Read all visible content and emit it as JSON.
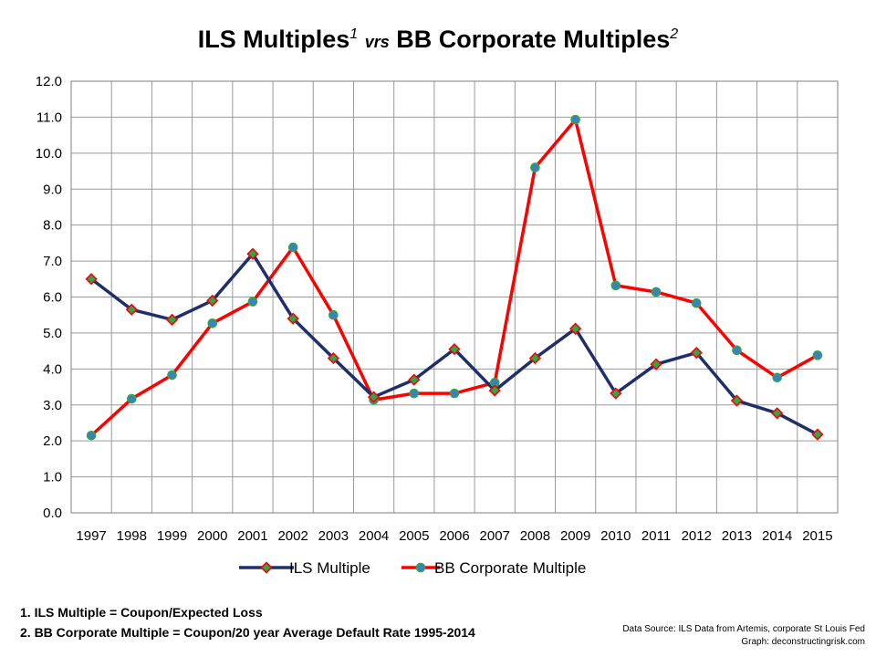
{
  "title": {
    "part1": "ILS Multiples",
    "sup1": "1",
    "vrs": "vrs",
    "part2": "BB Corporate Multiples",
    "sup2": "2"
  },
  "colors": {
    "ils_line": "#1f2f6b",
    "bb_line": "#ff0000",
    "ils_marker": "#2aa84a",
    "bb_marker": "#3f7fbf",
    "grid": "#9a9a9a"
  },
  "chart_data": {
    "type": "line",
    "title": "ILS Multiples vrs BB Corporate Multiples",
    "xlabel": "",
    "ylabel": "",
    "ylim": [
      0,
      12
    ],
    "yticks": [
      "0.0",
      "1.0",
      "2.0",
      "3.0",
      "4.0",
      "5.0",
      "6.0",
      "7.0",
      "8.0",
      "9.0",
      "10.0",
      "11.0",
      "12.0"
    ],
    "categories": [
      "1997",
      "1998",
      "1999",
      "2000",
      "2001",
      "2002",
      "2003",
      "2004",
      "2005",
      "2006",
      "2007",
      "2008",
      "2009",
      "2010",
      "2011",
      "2012",
      "2013",
      "2014",
      "2015"
    ],
    "series": [
      {
        "name": "ILS Multiple",
        "values": [
          6.5,
          5.65,
          5.37,
          5.9,
          7.2,
          5.4,
          4.3,
          3.22,
          3.7,
          4.55,
          3.4,
          4.3,
          5.12,
          3.32,
          4.13,
          4.45,
          3.12,
          2.77,
          2.18
        ]
      },
      {
        "name": "BB Corporate Multiple",
        "values": [
          2.15,
          3.17,
          3.83,
          5.27,
          5.87,
          7.38,
          5.5,
          3.14,
          3.32,
          3.32,
          3.62,
          9.6,
          10.93,
          6.32,
          6.14,
          5.83,
          4.52,
          3.76,
          4.38
        ]
      }
    ],
    "legend_position": "bottom",
    "grid": true
  },
  "footnotes": [
    "1. ILS Multiple = Coupon/Expected Loss",
    "2. BB Corporate Multiple = Coupon/20 year Average Default Rate 1995-2014"
  ],
  "source": {
    "line1": "Data Source:  ILS Data from Artemis, corporate St Louis Fed",
    "line2": "Graph: deconstructingrisk.com"
  }
}
